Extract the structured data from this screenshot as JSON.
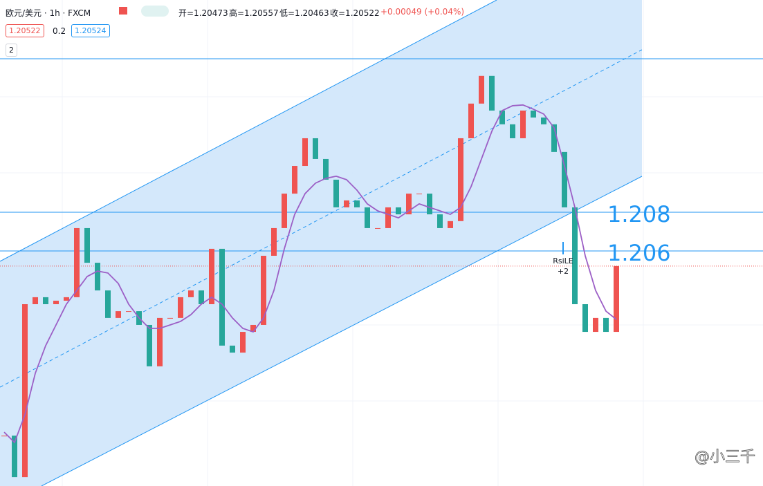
{
  "header": {
    "symbol": "欧元/美元 · 1h · FXCM",
    "open": "开=1.20473",
    "high": "高=1.20557",
    "low": "低=1.20463",
    "close": "收=1.20522",
    "change": "+0.00049 (+0.04%)",
    "bid": "1.20522",
    "spread": "0.2",
    "ask": "1.20524",
    "indicators": "2"
  },
  "chart_data": {
    "type": "candlestick",
    "ylim": [
      1.19386,
      1.21896
    ],
    "close": [
      1.19646,
      1.19432,
      1.20325,
      1.20361,
      1.20325,
      1.20343,
      1.20361,
      1.20718,
      1.20539,
      1.20396,
      1.20254,
      1.20289,
      1.20289,
      1.20218,
      1.20004,
      1.20254,
      1.20254,
      1.20361,
      1.20396,
      1.20325,
      1.20611,
      1.20111,
      1.20075,
      1.20182,
      1.20218,
      1.20575,
      1.20718,
      1.20896,
      1.21039,
      1.21182,
      1.21075,
      1.20968,
      1.20825,
      1.20861,
      1.20825,
      1.20718,
      1.20718,
      1.20825,
      1.20789,
      1.20896,
      1.20896,
      1.20789,
      1.20718,
      1.20754,
      1.21182,
      1.21361,
      1.21504,
      1.21325,
      1.21254,
      1.21182,
      1.21325,
      1.21289,
      1.21254,
      1.21111,
      1.20825,
      1.20325,
      1.20182,
      1.20254,
      1.20182,
      1.20522
    ],
    "ma": [
      1.19664,
      1.19611,
      1.19754,
      1.19968,
      1.20111,
      1.20218,
      1.20325,
      1.20396,
      1.20468,
      1.20496,
      1.20486,
      1.20432,
      1.20325,
      1.20254,
      1.202,
      1.202,
      1.20218,
      1.20236,
      1.20271,
      1.20325,
      1.20361,
      1.20325,
      1.20254,
      1.202,
      1.20182,
      1.20254,
      1.20396,
      1.20611,
      1.20789,
      1.20896,
      1.2095,
      1.20975,
      1.20986,
      1.20968,
      1.20914,
      1.20843,
      1.20807,
      1.20789,
      1.20771,
      1.20807,
      1.20843,
      1.20825,
      1.20807,
      1.20789,
      1.20825,
      1.20932,
      1.21075,
      1.21218,
      1.21325,
      1.2135,
      1.21354,
      1.21332,
      1.21307,
      1.21236,
      1.21039,
      1.20825,
      1.20575,
      1.20396,
      1.20289,
      1.20246
    ],
    "annotations": [
      {
        "value": 1.208,
        "label": "1.208"
      },
      {
        "value": 1.206,
        "label": "1.206"
      }
    ],
    "signal": "RsiLE",
    "signal_qty": "+2",
    "watermark": "@小三千"
  }
}
